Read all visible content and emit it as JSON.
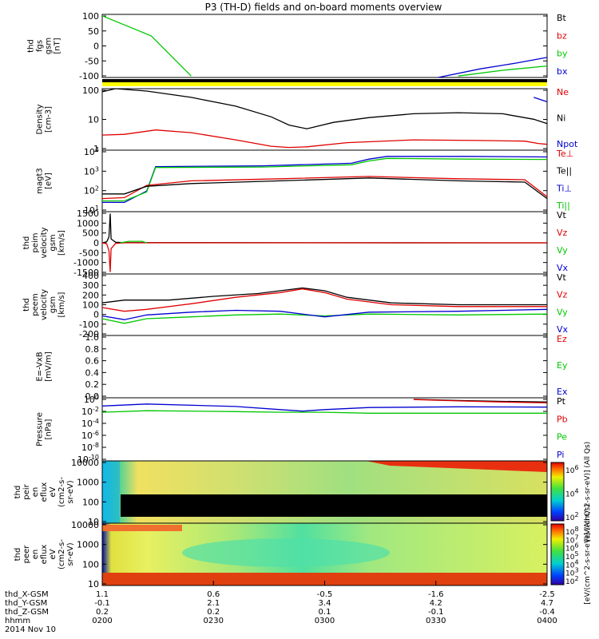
{
  "title": "P3 (TH-D) fields and on-board moments overview",
  "colors": {
    "black": "#000000",
    "red": "#e00000",
    "green": "#00c800",
    "blue": "#0000d0",
    "yellow": "#ffff00"
  },
  "chart_data": [
    {
      "type": "line",
      "name": "fgs",
      "ylabel": [
        "thd",
        "fgs",
        "gsm",
        "[nT]"
      ],
      "yticks": [
        "100",
        "50",
        "0",
        "-50",
        "-100"
      ],
      "ylim": [
        -115,
        105
      ],
      "scale": "linear",
      "legend": [
        {
          "label": "Bt",
          "color": "#000000"
        },
        {
          "label": "bz",
          "color": "#e00000"
        },
        {
          "label": "by",
          "color": "#00c800"
        },
        {
          "label": "bx",
          "color": "#0000d0"
        }
      ],
      "series": [
        {
          "name": "by",
          "color": "#00c800",
          "x": [
            0,
            0.11,
            0.2,
            0.3,
            0.7,
            0.8,
            0.9,
            1.0
          ],
          "y": [
            100,
            30,
            -110,
            null,
            null,
            -110,
            -90,
            -75
          ]
        },
        {
          "name": "bx",
          "color": "#0000d0",
          "x": [
            0,
            0.755,
            0.85,
            0.93,
            1.0
          ],
          "y": [
            null,
            -115,
            -85,
            -65,
            -45
          ]
        }
      ]
    },
    {
      "type": "line",
      "name": "density",
      "ylabel": [
        "Density",
        "[cm-3]"
      ],
      "yticks": [
        "100",
        "10",
        "1"
      ],
      "ylim": [
        0.7,
        200
      ],
      "scale": "log",
      "legend": [
        {
          "label": "Ne",
          "color": "#e00000"
        },
        {
          "label": "Ni",
          "color": "#000000"
        },
        {
          "label": "Npot",
          "color": "#0000d0"
        }
      ],
      "series": [
        {
          "name": "Ni",
          "color": "#000000",
          "x": [
            0,
            0.03,
            0.1,
            0.2,
            0.3,
            0.38,
            0.42,
            0.46,
            0.52,
            0.6,
            0.7,
            0.8,
            0.9,
            0.97,
            1.0
          ],
          "y": [
            150,
            200,
            160,
            90,
            40,
            15,
            7,
            5,
            9,
            14,
            20,
            22,
            20,
            12,
            8
          ]
        },
        {
          "name": "Ne",
          "color": "#e00000",
          "x": [
            0,
            0.05,
            0.12,
            0.2,
            0.3,
            0.38,
            0.42,
            0.46,
            0.55,
            0.7,
            0.85,
            0.95,
            0.98,
            1.0
          ],
          "y": [
            2.8,
            3,
            4.5,
            3.5,
            1.8,
            1.0,
            0.9,
            0.95,
            1.4,
            1.8,
            1.7,
            1.6,
            1.3,
            1.2
          ]
        },
        {
          "name": "Npot",
          "color": "#0000d0",
          "x": [
            0.97,
            1.0
          ],
          "y": [
            90,
            60
          ]
        }
      ]
    },
    {
      "type": "line",
      "name": "temperature",
      "ylabel": [
        "magt3",
        "[eV]"
      ],
      "yticks": [
        "10^4",
        "10^3",
        "10^2",
        "10^1"
      ],
      "ylim": [
        8,
        15000
      ],
      "scale": "log",
      "legend": [
        {
          "label": "Te⊥",
          "color": "#e00000"
        },
        {
          "label": "Te||",
          "color": "#000000"
        },
        {
          "label": "Ti⊥",
          "color": "#0000d0"
        },
        {
          "label": "Ti||",
          "color": "#00c800"
        }
      ],
      "series": [
        {
          "name": "Ti⊥",
          "color": "#0000d0",
          "x": [
            0,
            0.05,
            0.1,
            0.12,
            0.36,
            0.56,
            0.6,
            0.64,
            0.82,
            1.0
          ],
          "y": [
            25,
            25,
            100,
            2000,
            2200,
            3000,
            5000,
            7000,
            7000,
            6500
          ]
        },
        {
          "name": "Ti||",
          "color": "#00c800",
          "x": [
            0,
            0.05,
            0.1,
            0.12,
            0.36,
            0.56,
            0.6,
            0.64,
            0.82,
            1.0
          ],
          "y": [
            30,
            30,
            90,
            1800,
            1900,
            2500,
            4000,
            5500,
            5000,
            4800
          ]
        },
        {
          "name": "Te⊥",
          "color": "#e00000",
          "x": [
            0,
            0.05,
            0.1,
            0.2,
            0.4,
            0.6,
            0.8,
            0.95,
            1.0
          ],
          "y": [
            40,
            45,
            200,
            350,
            450,
            600,
            450,
            400,
            50
          ]
        },
        {
          "name": "Te||",
          "color": "#000000",
          "x": [
            0,
            0.05,
            0.1,
            0.2,
            0.4,
            0.6,
            0.8,
            0.95,
            1.0
          ],
          "y": [
            70,
            70,
            180,
            250,
            350,
            500,
            350,
            300,
            40
          ]
        }
      ]
    },
    {
      "type": "line",
      "name": "peim_velocity",
      "ylabel": [
        "thd",
        "peim",
        "velocity",
        "gsm",
        "[km/s]"
      ],
      "yticks": [
        "1500",
        "1000",
        "500",
        "0",
        "-500",
        "-1000",
        "-1500"
      ],
      "ylim": [
        -1600,
        1600
      ],
      "scale": "linear",
      "legend": [
        {
          "label": "Vt",
          "color": "#000000"
        },
        {
          "label": "Vz",
          "color": "#e00000"
        },
        {
          "label": "Vy",
          "color": "#00c800"
        },
        {
          "label": "Vx",
          "color": "#0000d0"
        }
      ],
      "series": [
        {
          "name": "Vt",
          "color": "#000000",
          "x": [
            0,
            0.01,
            0.015,
            0.018,
            0.02,
            0.03,
            0.05,
            1.0
          ],
          "y": [
            0,
            50,
            300,
            1500,
            200,
            30,
            10,
            0
          ]
        },
        {
          "name": "Vz",
          "color": "#e00000",
          "x": [
            0,
            0.01,
            0.015,
            0.018,
            0.02,
            0.03,
            0.05,
            1.0
          ],
          "y": [
            0,
            -50,
            -400,
            -1500,
            -300,
            -30,
            0,
            0
          ]
        },
        {
          "name": "Vy",
          "color": "#00c800",
          "x": [
            0.04,
            0.06,
            0.09,
            0.1
          ],
          "y": [
            0,
            80,
            80,
            0
          ]
        }
      ]
    },
    {
      "type": "line",
      "name": "peem_velocity",
      "ylabel": [
        "thd",
        "peem",
        "velocity",
        "gsm",
        "[km/s]"
      ],
      "yticks": [
        "400",
        "300",
        "200",
        "100",
        "0",
        "-100",
        "-200"
      ],
      "ylim": [
        -240,
        420
      ],
      "scale": "linear",
      "legend": [
        {
          "label": "Vt",
          "color": "#000000"
        },
        {
          "label": "Vz",
          "color": "#e00000"
        },
        {
          "label": "Vy",
          "color": "#00c800"
        },
        {
          "label": "Vx",
          "color": "#0000d0"
        }
      ],
      "series": [
        {
          "name": "Vt",
          "color": "#000000",
          "x": [
            0,
            0.05,
            0.15,
            0.25,
            0.35,
            0.4,
            0.45,
            0.5,
            0.55,
            0.65,
            0.8,
            1.0
          ],
          "y": [
            110,
            140,
            140,
            180,
            210,
            240,
            270,
            240,
            170,
            110,
            90,
            90
          ]
        },
        {
          "name": "Vz",
          "color": "#e00000",
          "x": [
            0,
            0.05,
            0.1,
            0.2,
            0.3,
            0.4,
            0.45,
            0.5,
            0.55,
            0.65,
            0.8,
            1.0
          ],
          "y": [
            60,
            20,
            40,
            100,
            170,
            220,
            260,
            220,
            150,
            90,
            70,
            70
          ]
        },
        {
          "name": "Vy",
          "color": "#00c800",
          "x": [
            0,
            0.05,
            0.1,
            0.2,
            0.3,
            0.4,
            0.5,
            0.6,
            0.8,
            1.0
          ],
          "y": [
            -60,
            -110,
            -60,
            -40,
            -20,
            -10,
            -30,
            -10,
            -20,
            -10
          ]
        },
        {
          "name": "Vx",
          "color": "#0000d0",
          "x": [
            0,
            0.05,
            0.1,
            0.2,
            0.3,
            0.4,
            0.5,
            0.6,
            0.8,
            1.0
          ],
          "y": [
            -30,
            -70,
            -20,
            10,
            30,
            20,
            -40,
            10,
            20,
            40
          ]
        }
      ]
    },
    {
      "type": "line",
      "name": "efield",
      "ylabel": [
        "E=-VxB",
        "[mV/m]"
      ],
      "yticks": [
        "1.0",
        "0.8",
        "0.6",
        "0.4",
        "0.2",
        "0.0"
      ],
      "ylim": [
        -0.05,
        1.0
      ],
      "scale": "linear",
      "legend": [
        {
          "label": "Ez",
          "color": "#e00000"
        },
        {
          "label": "Ey",
          "color": "#00c800"
        },
        {
          "label": "Ex",
          "color": "#0000d0"
        }
      ],
      "series": []
    },
    {
      "type": "line",
      "name": "pressure",
      "ylabel": [
        "Pressure",
        "[nPa]"
      ],
      "yticks": [
        "10^0",
        "10^-2",
        "10^-4",
        "10^-6",
        "10^-8",
        "10^-10"
      ],
      "ylim": [
        1e-11,
        20
      ],
      "scale": "log",
      "legend": [
        {
          "label": "Pt",
          "color": "#000000"
        },
        {
          "label": "Pb",
          "color": "#e00000"
        },
        {
          "label": "Pe",
          "color": "#00c800"
        },
        {
          "label": "Pi",
          "color": "#0000d0"
        }
      ],
      "series": [
        {
          "name": "Pi",
          "color": "#0000d0",
          "x": [
            0,
            0.1,
            0.3,
            0.4,
            0.45,
            0.5,
            0.6,
            0.8,
            1.0
          ],
          "y": [
            0.5,
            1.2,
            0.4,
            0.1,
            0.05,
            0.1,
            0.25,
            0.35,
            0.3
          ]
        },
        {
          "name": "Pe",
          "color": "#00c800",
          "x": [
            0,
            0.1,
            0.3,
            0.4,
            0.45,
            0.5,
            0.6,
            0.8,
            1.0
          ],
          "y": [
            0.03,
            0.06,
            0.04,
            0.03,
            0.03,
            0.03,
            0.02,
            0.02,
            0.02
          ]
        },
        {
          "name": "Pt",
          "color": "#000000",
          "x": [
            0.7,
            0.8,
            0.9,
            1.0
          ],
          "y": [
            10,
            6,
            4,
            3
          ]
        },
        {
          "name": "Pb",
          "color": "#e00000",
          "x": [
            0.7,
            0.8,
            0.9,
            1.0
          ],
          "y": [
            9,
            5,
            3,
            2
          ]
        }
      ]
    },
    {
      "type": "heatmap",
      "name": "peir_eflux",
      "ylabel": [
        "thd",
        "peir",
        "en",
        "eflux",
        "eV",
        "(cm2-s-",
        "sr-eV)"
      ],
      "yticks": [
        "10000",
        "1000",
        "100",
        "10"
      ],
      "scale": "log"
    },
    {
      "type": "heatmap",
      "name": "peer_eflux",
      "ylabel": [
        "thd",
        "peer",
        "en",
        "eflux",
        "eV",
        "(cm2-s-",
        "sr-eV)"
      ],
      "yticks": [
        "10000",
        "1000",
        "100",
        "10"
      ],
      "scale": "log"
    }
  ],
  "colorbar": {
    "label_top": "[eV/(cm^2-s-sr-eV)] (All Qs)",
    "label_bottom": "[eV/(cm^2-s-sr-eV)] (All Qs)",
    "ticks_top": [
      "10^6",
      "10^4",
      "10^2"
    ],
    "ticks_bottom": [
      "10^8",
      "10^7",
      "10^6",
      "10^5",
      "10^4",
      "10^3",
      "10^2"
    ]
  },
  "xaxis": {
    "rows": [
      {
        "label": "thd_X-GSM",
        "values": [
          "1.1",
          "0.6",
          "-0.5",
          "-1.6",
          "-2.5"
        ]
      },
      {
        "label": "thd_Y-GSM",
        "values": [
          "-0.1",
          "2.1",
          "3.4",
          "4.2",
          "4.7"
        ]
      },
      {
        "label": "thd_Z-GSM",
        "values": [
          "0.2",
          "0.2",
          "0.1",
          "-0.1",
          "-0.4"
        ]
      },
      {
        "label": "hhmm",
        "values": [
          "0200",
          "0230",
          "0300",
          "0330",
          "0400"
        ]
      }
    ],
    "date": "2014 Nov 10"
  }
}
